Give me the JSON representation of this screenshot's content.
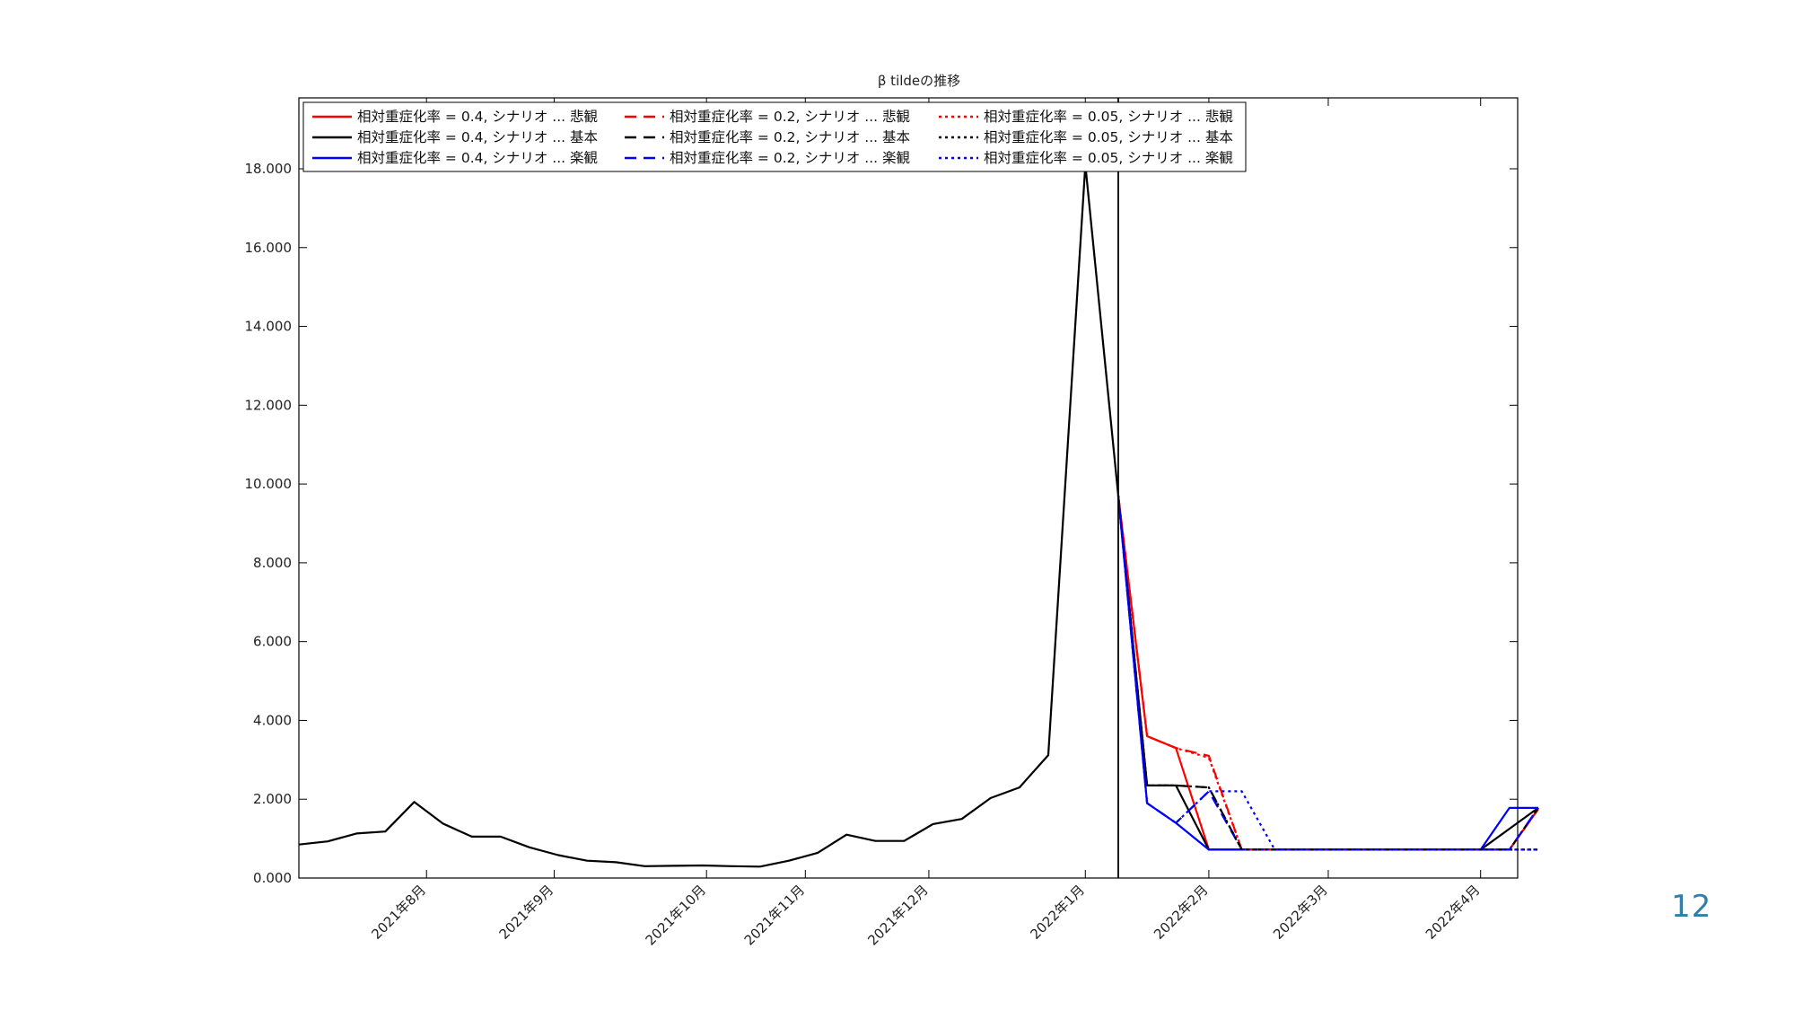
{
  "page_number": "12",
  "chart_data": {
    "type": "line",
    "title": "β tildeの推移",
    "xlabel": "",
    "ylabel": "",
    "x_range": [
      "2021-07-01",
      "2022-04-23"
    ],
    "ylim": [
      0,
      19.8
    ],
    "y_ticks": [
      0,
      2,
      4,
      6,
      8,
      10,
      12,
      14,
      16,
      18
    ],
    "y_tick_labels": [
      "0.000",
      "2.000",
      "4.000",
      "6.000",
      "8.000",
      "10.000",
      "12.000",
      "14.000",
      "16.000",
      "18.000"
    ],
    "x_ticks": [
      "2021-08-01",
      "2021-09-01",
      "2021-10-08",
      "2021-11-01",
      "2021-12-01",
      "2022-01-08",
      "2022-02-07",
      "2022-03-08",
      "2022-04-14"
    ],
    "x_tick_labels": [
      "2021年8月",
      "2021年9月",
      "2021年10月",
      "2021年11月",
      "2021年12月",
      "2022年1月",
      "2022年2月",
      "2022年3月",
      "2022年4月"
    ],
    "vertical_line": "2022-01-16",
    "grid": false,
    "legend_position": "top-left",
    "legend_columns": 3,
    "series": [
      {
        "name": "相対重症化率 = 0.4, シナリオ ... 悲観",
        "color": "#ff0000",
        "style": "solid",
        "points": [
          [
            "2022-01-16",
            9.7
          ],
          [
            "2022-01-23",
            3.6
          ],
          [
            "2022-01-30",
            3.3
          ],
          [
            "2022-02-07",
            0.72
          ],
          [
            "2022-04-14",
            0.72
          ],
          [
            "2022-04-21",
            0.72
          ],
          [
            "2022-04-28",
            1.75
          ]
        ]
      },
      {
        "name": "相対重症化率 = 0.4, シナリオ ... 基本",
        "color": "#000000",
        "style": "solid",
        "points": [
          [
            "2022-01-16",
            9.7
          ],
          [
            "2022-01-23",
            2.35
          ],
          [
            "2022-01-30",
            2.35
          ],
          [
            "2022-02-07",
            0.72
          ],
          [
            "2022-04-14",
            0.72
          ],
          [
            "2022-04-28",
            1.78
          ]
        ]
      },
      {
        "name": "相対重症化率 = 0.4, シナリオ ... 楽観",
        "color": "#0000ff",
        "style": "solid",
        "points": [
          [
            "2022-01-16",
            9.7
          ],
          [
            "2022-01-23",
            1.9
          ],
          [
            "2022-01-30",
            1.4
          ],
          [
            "2022-02-07",
            0.72
          ],
          [
            "2022-04-14",
            0.72
          ],
          [
            "2022-04-21",
            1.78
          ],
          [
            "2022-04-28",
            1.78
          ]
        ]
      },
      {
        "name": "相対重症化率 = 0.2, シナリオ ... 悲観",
        "color": "#ff0000",
        "style": "dashed",
        "points": [
          [
            "2022-01-16",
            9.7
          ],
          [
            "2022-01-23",
            3.6
          ],
          [
            "2022-01-30",
            3.3
          ],
          [
            "2022-02-07",
            3.1
          ],
          [
            "2022-02-15",
            0.72
          ],
          [
            "2022-04-21",
            0.72
          ],
          [
            "2022-04-28",
            1.75
          ]
        ]
      },
      {
        "name": "相対重症化率 = 0.2, シナリオ ... 基本",
        "color": "#000000",
        "style": "dashed",
        "points": [
          [
            "2022-01-16",
            9.7
          ],
          [
            "2022-01-23",
            2.35
          ],
          [
            "2022-01-30",
            2.35
          ],
          [
            "2022-02-07",
            2.3
          ],
          [
            "2022-02-15",
            0.72
          ],
          [
            "2022-04-21",
            0.72
          ],
          [
            "2022-04-28",
            1.78
          ]
        ]
      },
      {
        "name": "相対重症化率 = 0.2, シナリオ ... 楽観",
        "color": "#0000ff",
        "style": "dashed",
        "points": [
          [
            "2022-01-16",
            9.7
          ],
          [
            "2022-01-23",
            1.9
          ],
          [
            "2022-01-30",
            1.4
          ],
          [
            "2022-02-07",
            2.2
          ],
          [
            "2022-02-15",
            0.72
          ],
          [
            "2022-04-21",
            0.72
          ],
          [
            "2022-04-28",
            1.78
          ]
        ]
      },
      {
        "name": "相対重症化率 = 0.05, シナリオ ... 悲観",
        "color": "#ff0000",
        "style": "dotted",
        "points": [
          [
            "2022-01-16",
            9.7
          ],
          [
            "2022-01-23",
            3.6
          ],
          [
            "2022-01-30",
            3.3
          ],
          [
            "2022-02-07",
            3.05
          ],
          [
            "2022-02-15",
            0.72
          ],
          [
            "2022-04-28",
            0.72
          ]
        ]
      },
      {
        "name": "相対重症化率 = 0.05, シナリオ ... 基本",
        "color": "#000000",
        "style": "dotted",
        "points": [
          [
            "2022-01-16",
            9.7
          ],
          [
            "2022-01-23",
            2.35
          ],
          [
            "2022-01-30",
            2.35
          ],
          [
            "2022-02-07",
            2.3
          ],
          [
            "2022-02-15",
            0.72
          ],
          [
            "2022-04-28",
            0.72
          ]
        ]
      },
      {
        "name": "相対重症化率 = 0.05, シナリオ ... 楽観",
        "color": "#0000ff",
        "style": "dotted",
        "points": [
          [
            "2022-01-16",
            9.7
          ],
          [
            "2022-01-23",
            1.9
          ],
          [
            "2022-01-30",
            1.4
          ],
          [
            "2022-02-07",
            2.2
          ],
          [
            "2022-02-15",
            2.2
          ],
          [
            "2022-02-23",
            0.72
          ],
          [
            "2022-04-28",
            0.72
          ]
        ]
      },
      {
        "name": "",
        "color": "#000000",
        "style": "solid",
        "points": [
          [
            "2021-07-01",
            0.85
          ],
          [
            "2021-07-08",
            0.93
          ],
          [
            "2021-07-15",
            1.13
          ],
          [
            "2021-07-22",
            1.18
          ],
          [
            "2021-07-29",
            1.93
          ],
          [
            "2021-08-05",
            1.38
          ],
          [
            "2021-08-12",
            1.05
          ],
          [
            "2021-08-19",
            1.05
          ],
          [
            "2021-08-26",
            0.78
          ],
          [
            "2021-09-02",
            0.58
          ],
          [
            "2021-09-09",
            0.44
          ],
          [
            "2021-09-16",
            0.4
          ],
          [
            "2021-09-23",
            0.3
          ],
          [
            "2021-09-30",
            0.31
          ],
          [
            "2021-10-07",
            0.32
          ],
          [
            "2021-10-14",
            0.3
          ],
          [
            "2021-10-21",
            0.29
          ],
          [
            "2021-10-28",
            0.44
          ],
          [
            "2021-11-04",
            0.64
          ],
          [
            "2021-11-11",
            1.1
          ],
          [
            "2021-11-18",
            0.94
          ],
          [
            "2021-11-25",
            0.94
          ],
          [
            "2021-12-02",
            1.37
          ],
          [
            "2021-12-09",
            1.5
          ],
          [
            "2021-12-16",
            2.03
          ],
          [
            "2021-12-23",
            2.3
          ],
          [
            "2021-12-30",
            3.12
          ],
          [
            "2022-01-08",
            18.1
          ],
          [
            "2022-01-16",
            9.7
          ]
        ]
      }
    ]
  }
}
